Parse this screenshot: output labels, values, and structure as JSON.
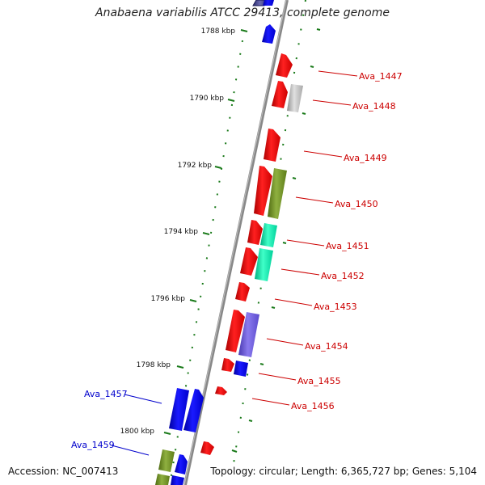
{
  "title": "Anabaena variabilis ATCC 29413, complete genome",
  "footer": {
    "accession": "Accession: NC_007413",
    "summary": "Topology: circular; Length: 6,365,727 bp; Genes: 5,104"
  },
  "ticks": [
    "1788 kbp",
    "1790 kbp",
    "1792 kbp",
    "1794 kbp",
    "1796 kbp",
    "1798 kbp",
    "1800 kbp"
  ],
  "genes": [
    {
      "label": "Ava_1447",
      "color": "#cc0000"
    },
    {
      "label": "Ava_1448",
      "color": "#cc0000"
    },
    {
      "label": "Ava_1449",
      "color": "#cc0000"
    },
    {
      "label": "Ava_1450",
      "color": "#cc0000"
    },
    {
      "label": "Ava_1451",
      "color": "#cc0000"
    },
    {
      "label": "Ava_1452",
      "color": "#cc0000"
    },
    {
      "label": "Ava_1453",
      "color": "#cc0000"
    },
    {
      "label": "Ava_1454",
      "color": "#cc0000"
    },
    {
      "label": "Ava_1455",
      "color": "#cc0000"
    },
    {
      "label": "Ava_1456",
      "color": "#cc0000"
    },
    {
      "label": "Ava_1457",
      "color": "#0000cc"
    },
    {
      "label": "Ava_1459",
      "color": "#0000cc"
    }
  ],
  "colors": {
    "red_strand": "#ff0000",
    "blue_strand": "#0000ff",
    "olive": "#6b8e23",
    "teal": "#00e6a8",
    "purple": "#6a5acd",
    "gray": "#b0b0b0",
    "scale_green": "#1a7a1a",
    "backbone": "#888888"
  }
}
